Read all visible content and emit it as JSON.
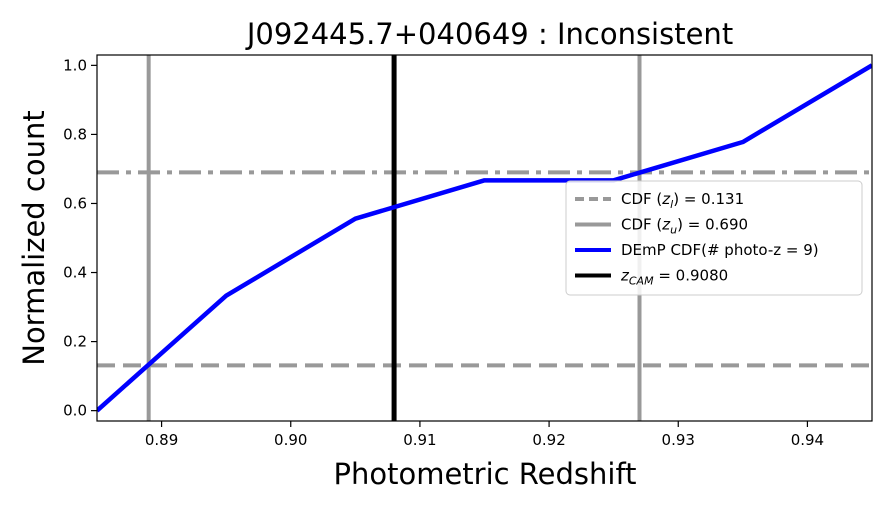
{
  "chart_data": {
    "type": "line",
    "title": "J092445.7+040649 : Inconsistent",
    "xlabel": "Photometric Redshift",
    "ylabel": "Normalized count",
    "xlim": [
      0.885,
      0.945
    ],
    "ylim": [
      -0.03,
      1.03
    ],
    "xticks": [
      0.89,
      0.9,
      0.91,
      0.92,
      0.93,
      0.94
    ],
    "xtick_labels": [
      "0.89",
      "0.90",
      "0.91",
      "0.92",
      "0.93",
      "0.94"
    ],
    "yticks": [
      0.0,
      0.2,
      0.4,
      0.6,
      0.8,
      1.0
    ],
    "ytick_labels": [
      "0.0",
      "0.2",
      "0.4",
      "0.6",
      "0.8",
      "1.0"
    ],
    "grid": false,
    "legend_position": "center-right",
    "series": [
      {
        "name": "DEmP CDF(# photo-z = 9)",
        "color": "#0000ff",
        "x": [
          0.885,
          0.895,
          0.905,
          0.915,
          0.925,
          0.935,
          0.945
        ],
        "y": [
          0.0,
          0.333,
          0.556,
          0.667,
          0.667,
          0.778,
          1.0
        ]
      }
    ],
    "reference_lines": [
      {
        "orientation": "horizontal",
        "value": 0.131,
        "style": "dashed",
        "color": "#999999",
        "label": "CDF (z_l) = 0.131"
      },
      {
        "orientation": "horizontal",
        "value": 0.69,
        "style": "dashdot",
        "color": "#999999",
        "label": "CDF (z_u) = 0.690"
      },
      {
        "orientation": "vertical",
        "value": 0.889,
        "style": "solid",
        "color": "#999999"
      },
      {
        "orientation": "vertical",
        "value": 0.927,
        "style": "solid",
        "color": "#999999"
      },
      {
        "orientation": "vertical",
        "value": 0.908,
        "style": "solid",
        "color": "#000000",
        "label": "z_CAM = 0.9080"
      }
    ],
    "legend": [
      {
        "style": "dashed",
        "color": "#999999",
        "prefix": "CDF (",
        "var": "z",
        "sub": "l",
        "suffix": ") = 0.131"
      },
      {
        "style": "solid",
        "color": "#999999",
        "prefix": "CDF (",
        "var": "z",
        "sub": "u",
        "suffix": ") = 0.690"
      },
      {
        "style": "solid",
        "color": "#0000ff",
        "prefix": "DEmP CDF(# photo-z = 9)",
        "var": "",
        "sub": "",
        "suffix": ""
      },
      {
        "style": "solid",
        "color": "#000000",
        "prefix": "",
        "var": "z",
        "sub": "CAM",
        "suffix": " = 0.9080"
      }
    ]
  }
}
